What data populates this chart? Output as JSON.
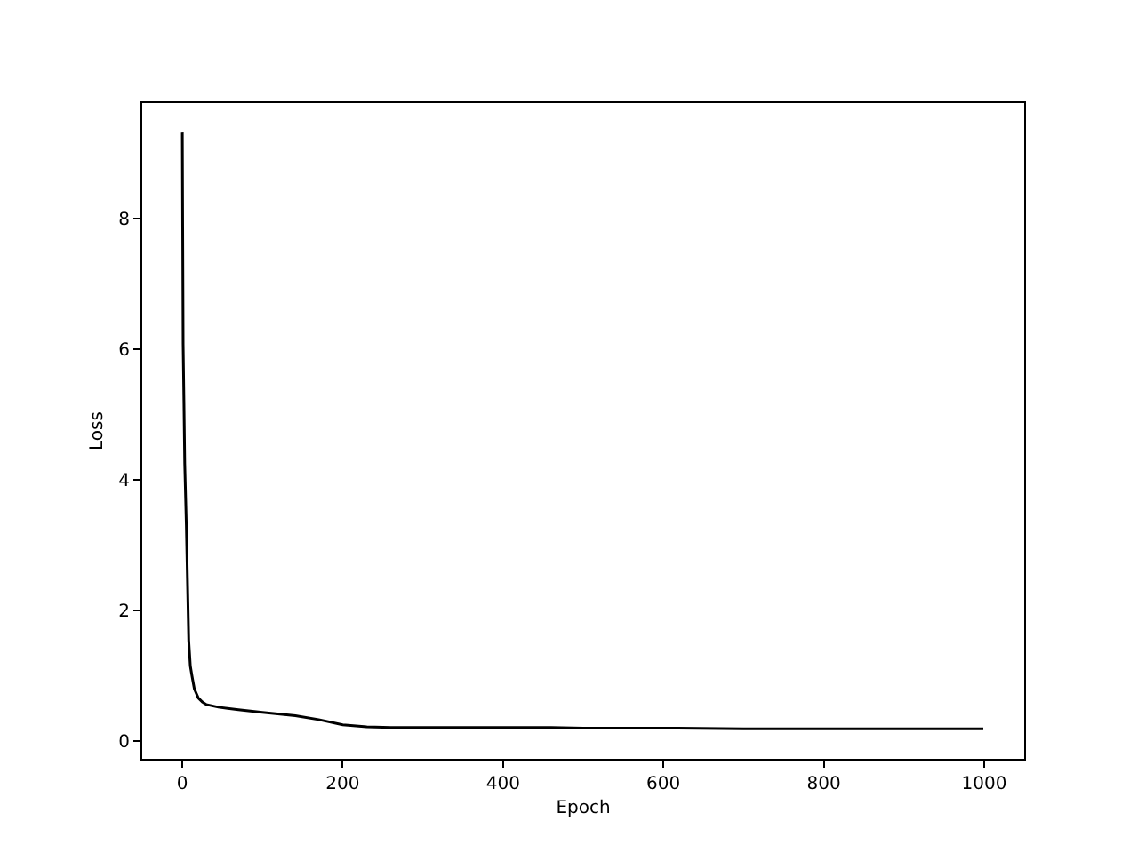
{
  "chart_data": {
    "type": "line",
    "xlabel": "Epoch",
    "ylabel": "Loss",
    "x": [
      0,
      1,
      2,
      3,
      5,
      8,
      10,
      12,
      15,
      20,
      25,
      30,
      45,
      70,
      100,
      141,
      170,
      200,
      230,
      260,
      300,
      400,
      460,
      500,
      600,
      700,
      800,
      900,
      999
    ],
    "series": [
      {
        "color": "#000000",
        "values": [
          9.31,
          6.07,
          5.2,
          4.25,
          3.3,
          1.54,
          1.15,
          1.0,
          0.8,
          0.66,
          0.6,
          0.56,
          0.52,
          0.48,
          0.44,
          0.39,
          0.33,
          0.25,
          0.22,
          0.21,
          0.21,
          0.21,
          0.21,
          0.2,
          0.2,
          0.19,
          0.19,
          0.19,
          0.19
        ]
      }
    ],
    "xlim": [
      -50,
      1050
    ],
    "xticks": [
      0,
      200,
      400,
      600,
      800,
      1000
    ],
    "ylim": [
      -0.27,
      9.76
    ],
    "yticks": [
      0,
      2,
      4,
      6,
      8
    ],
    "grid": false,
    "legend": false,
    "marker": "none",
    "line_style": "solid"
  }
}
